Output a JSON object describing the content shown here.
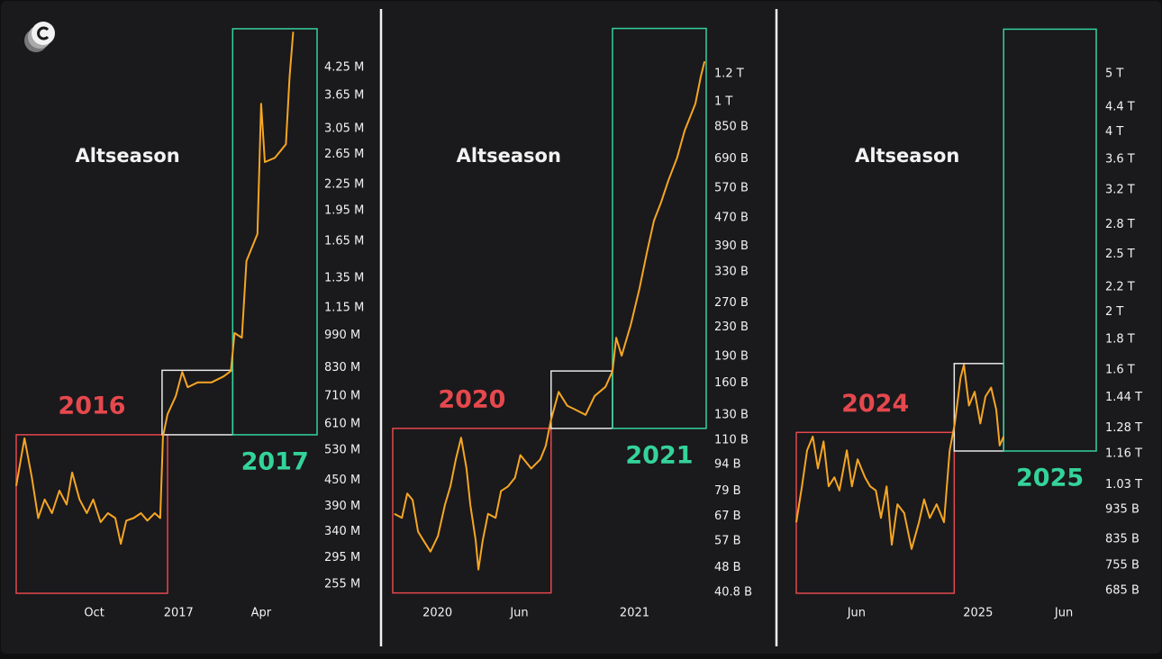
{
  "chart_data": [
    {
      "type": "line",
      "annotation": "Altseason",
      "yscale": "log",
      "color": "#f5a623",
      "xlim": [
        -177,
        151
      ],
      "xticks": [
        {
          "value": -92,
          "label": "Oct"
        },
        {
          "value": 0,
          "label": "2017"
        },
        {
          "value": 90,
          "label": "Apr"
        }
      ],
      "ylim": [
        236,
        5300
      ],
      "yticks": [
        {
          "value": 4250,
          "label": "4.25 M"
        },
        {
          "value": 3650,
          "label": "3.65 M"
        },
        {
          "value": 3050,
          "label": "3.05 M"
        },
        {
          "value": 2650,
          "label": "2.65 M"
        },
        {
          "value": 2250,
          "label": "2.25 M"
        },
        {
          "value": 1950,
          "label": "1.95 M"
        },
        {
          "value": 1650,
          "label": "1.65 M"
        },
        {
          "value": 1350,
          "label": "1.35 M"
        },
        {
          "value": 1150,
          "label": "1.15 M"
        },
        {
          "value": 990,
          "label": "990 M"
        },
        {
          "value": 830,
          "label": "830 M"
        },
        {
          "value": 710,
          "label": "710 M"
        },
        {
          "value": 610,
          "label": "610 M"
        },
        {
          "value": 530,
          "label": "530 M"
        },
        {
          "value": 450,
          "label": "450 M"
        },
        {
          "value": 390,
          "label": "390 M"
        },
        {
          "value": 340,
          "label": "340 M"
        },
        {
          "value": 295,
          "label": "295 M"
        },
        {
          "value": 255,
          "label": "255 M"
        }
      ],
      "x": [
        -177,
        -168,
        -160,
        -153,
        -146,
        -138,
        -130,
        -122,
        -116,
        -108,
        -100,
        -93,
        -85,
        -77,
        -69,
        -63,
        -57,
        -49,
        -41,
        -34,
        -26,
        -20,
        -17,
        -12,
        -3,
        4,
        10,
        21,
        36,
        49,
        57,
        61,
        69,
        74,
        86,
        90,
        94,
        105,
        117,
        121,
        125
      ],
      "values": [
        436,
        565,
        457,
        366,
        405,
        376,
        425,
        394,
        469,
        405,
        376,
        405,
        358,
        376,
        366,
        318,
        361,
        366,
        376,
        361,
        376,
        366,
        570,
        644,
        711,
        811,
        746,
        766,
        766,
        791,
        815,
        1002,
        977,
        1483,
        1718,
        3491,
        2541,
        2600,
        2799,
        4046,
        5164
      ],
      "regions": [
        {
          "label": "2016",
          "color": "#e5484d",
          "x": [
            -177,
            -12
          ],
          "y": [
            243,
            576
          ]
        },
        {
          "color": "#e8e8e8",
          "x": [
            -18,
            59
          ],
          "y": [
            576,
            818
          ]
        },
        {
          "label": "2017",
          "color": "#34d39a",
          "x": [
            59,
            151
          ],
          "y": [
            576,
            5250
          ]
        }
      ]
    },
    {
      "type": "line",
      "annotation": "Altseason",
      "yscale": "log",
      "color": "#f5a623",
      "xlim": [
        -83,
        499
      ],
      "xticks": [
        {
          "value": 0,
          "label": "2020"
        },
        {
          "value": 152,
          "label": "Jun"
        },
        {
          "value": 366,
          "label": "2021"
        }
      ],
      "ylim": [
        39.2,
        1630
      ],
      "yticks": [
        {
          "value": 1200,
          "label": "1.2 T"
        },
        {
          "value": 1000,
          "label": "1 T"
        },
        {
          "value": 850,
          "label": "850 B"
        },
        {
          "value": 690,
          "label": "690 B"
        },
        {
          "value": 570,
          "label": "570 B"
        },
        {
          "value": 470,
          "label": "470 B"
        },
        {
          "value": 390,
          "label": "390 B"
        },
        {
          "value": 330,
          "label": "330 B"
        },
        {
          "value": 270,
          "label": "270 B"
        },
        {
          "value": 230,
          "label": "230 B"
        },
        {
          "value": 190,
          "label": "190 B"
        },
        {
          "value": 160,
          "label": "160 B"
        },
        {
          "value": 130,
          "label": "130 B"
        },
        {
          "value": 110,
          "label": "110 B"
        },
        {
          "value": 94,
          "label": "94 B"
        },
        {
          "value": 79,
          "label": "79 B"
        },
        {
          "value": 67,
          "label": "67 B"
        },
        {
          "value": 57,
          "label": "57 B"
        },
        {
          "value": 48,
          "label": "48 B"
        },
        {
          "value": 40.8,
          "label": "40.8 B"
        }
      ],
      "x": [
        -80,
        -66,
        -56,
        -46,
        -36,
        -26,
        -13,
        1,
        14,
        24,
        34,
        44,
        54,
        61,
        71,
        76,
        84,
        94,
        108,
        118,
        131,
        144,
        154,
        174,
        191,
        201,
        211,
        225,
        241,
        258,
        275,
        292,
        312,
        325,
        332,
        342,
        359,
        375,
        389,
        402,
        415,
        429,
        445,
        459,
        469,
        479,
        489,
        496
      ],
      "values": [
        68.2,
        66.4,
        77.8,
        74.6,
        60.7,
        57.3,
        53.3,
        59.0,
        72.4,
        81.5,
        97.2,
        112,
        91.6,
        72.4,
        57.3,
        47.4,
        57.3,
        68.2,
        66.4,
        79.1,
        81.5,
        86.3,
        100,
        91.6,
        97.2,
        106,
        126,
        151,
        138,
        134,
        130,
        147,
        156,
        173,
        215,
        191,
        234,
        296,
        375,
        461,
        519,
        600,
        695,
        830,
        906,
        989,
        1180,
        1303
      ],
      "regions": [
        {
          "label": "2020",
          "color": "#e5484d",
          "x": [
            -83,
            211
          ],
          "y": [
            40.7,
            119
          ]
        },
        {
          "color": "#e8e8e8",
          "x": [
            211,
            325
          ],
          "y": [
            119,
            173
          ]
        },
        {
          "label": "2021",
          "color": "#34d39a",
          "x": [
            325,
            499
          ],
          "y": [
            119,
            1615
          ]
        }
      ]
    },
    {
      "type": "line",
      "annotation": "Altseason",
      "yscale": "log",
      "color": "#f5a623",
      "xlim": [
        -320,
        208
      ],
      "xticks": [
        {
          "value": -214,
          "label": "Jun"
        },
        {
          "value": 0,
          "label": "2025"
        },
        {
          "value": 151,
          "label": "Jun"
        }
      ],
      "ylim": [
        664,
        5990
      ],
      "yticks": [
        {
          "value": 5000,
          "label": "5 T"
        },
        {
          "value": 4400,
          "label": "4.4 T"
        },
        {
          "value": 4000,
          "label": "4 T"
        },
        {
          "value": 3600,
          "label": "3.6 T"
        },
        {
          "value": 3200,
          "label": "3.2 T"
        },
        {
          "value": 2800,
          "label": "2.8 T"
        },
        {
          "value": 2500,
          "label": "2.5 T"
        },
        {
          "value": 2200,
          "label": "2.2 T"
        },
        {
          "value": 2000,
          "label": "2 T"
        },
        {
          "value": 1800,
          "label": "1.8 T"
        },
        {
          "value": 1600,
          "label": "1.6 T"
        },
        {
          "value": 1440,
          "label": "1.44 T"
        },
        {
          "value": 1280,
          "label": "1.28 T"
        },
        {
          "value": 1160,
          "label": "1.16 T"
        },
        {
          "value": 1030,
          "label": "1.03 T"
        },
        {
          "value": 935,
          "label": "935 B"
        },
        {
          "value": 835,
          "label": "835 B"
        },
        {
          "value": 755,
          "label": "755 B"
        },
        {
          "value": 685,
          "label": "685 B"
        }
      ],
      "x": [
        -320,
        -310,
        -301,
        -291,
        -282,
        -272,
        -263,
        -253,
        -244,
        -231,
        -222,
        -212,
        -199,
        -190,
        -180,
        -171,
        -161,
        -152,
        -142,
        -130,
        -117,
        -104,
        -95,
        -85,
        -73,
        -60,
        -50,
        -41,
        -31,
        -25,
        -16,
        -6,
        4,
        13,
        23,
        32,
        38,
        45
      ],
      "values": [
        891,
        1023,
        1175,
        1239,
        1096,
        1216,
        1023,
        1059,
        1007,
        1175,
        1023,
        1135,
        1059,
        1023,
        1007,
        906,
        1023,
        817,
        955,
        923,
        804,
        891,
        973,
        906,
        955,
        891,
        1175,
        1303,
        1552,
        1633,
        1396,
        1472,
        1303,
        1445,
        1496,
        1374,
        1197,
        1239
      ],
      "regions": [
        {
          "label": "2024",
          "color": "#e5484d",
          "x": [
            -320,
            -42
          ],
          "y": [
            678,
            1259
          ]
        },
        {
          "color": "#e8e8e8",
          "x": [
            -42,
            45
          ],
          "y": [
            1172,
            1641
          ]
        },
        {
          "label": "2025",
          "color": "#34d39a",
          "x": [
            45,
            208
          ],
          "y": [
            1172,
            5940
          ]
        }
      ]
    }
  ]
}
